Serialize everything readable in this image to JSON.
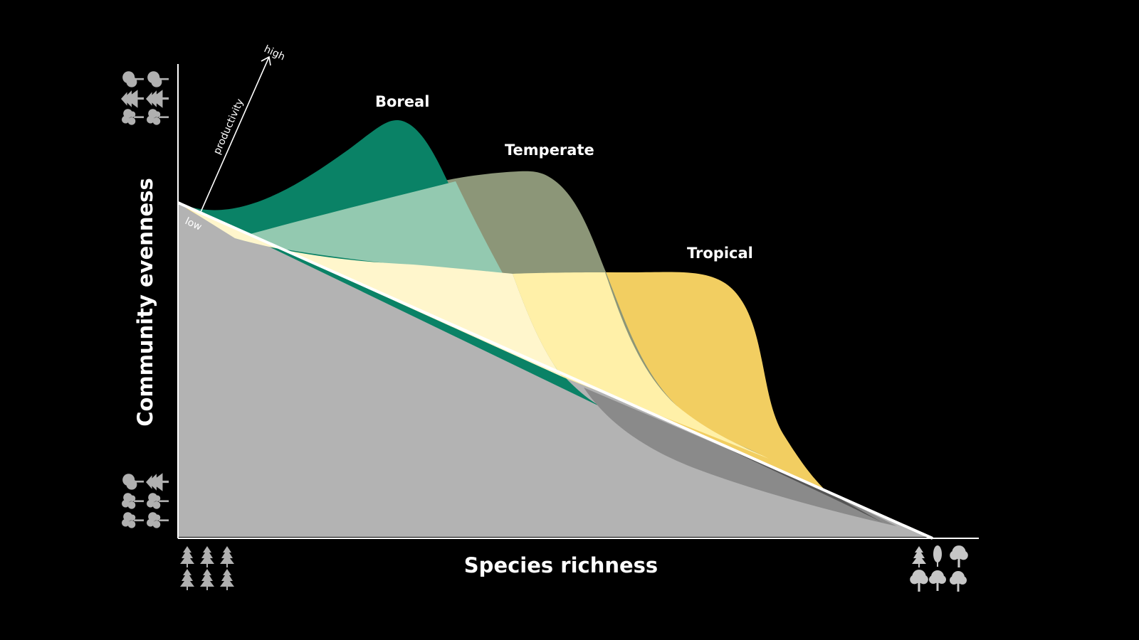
{
  "diagram": {
    "x_axis_title": "Species richness",
    "y_axis_title": "Community evenness",
    "productivity_label": "productivity",
    "productivity_high": "high",
    "productivity_low": "low",
    "regions": [
      {
        "name": "Boreal",
        "color": "#0a8266"
      },
      {
        "name": "Temperate",
        "color": "#8c9678"
      },
      {
        "name": "Tropical",
        "color": "#ffd966"
      }
    ],
    "colors": {
      "background": "#000000",
      "base_area": "#b3b3b3",
      "axis_line": "#ffffff",
      "tree_icon": "#b0b0b0",
      "boreal_overlap": "#93c9b0",
      "yellow_light": "#fff6cc"
    },
    "icons": {
      "y_top": "mixed-tree-icons",
      "y_bottom": "mixed-tree-icons",
      "x_left": "conifer-tree-icons",
      "x_right": "diverse-tree-icons"
    }
  }
}
